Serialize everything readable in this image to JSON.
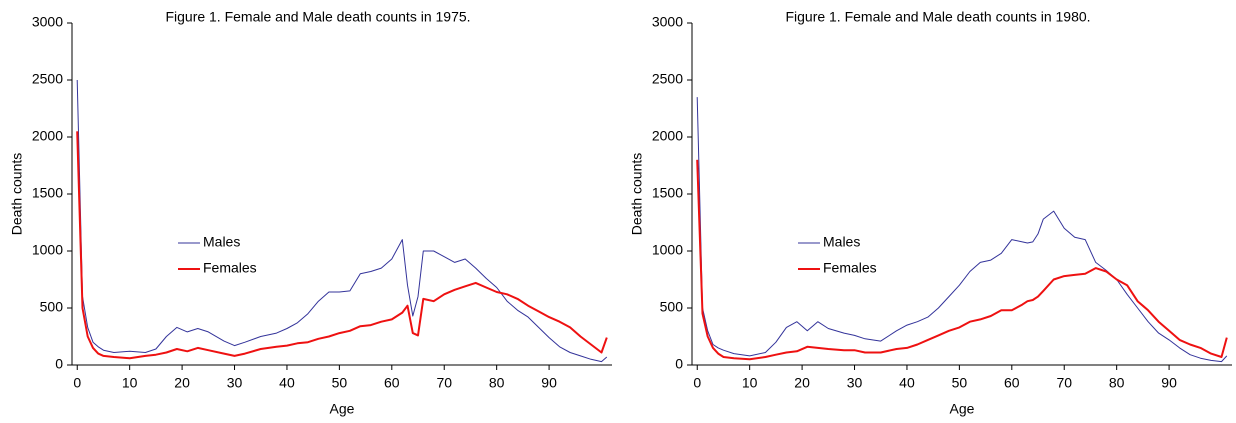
{
  "chart_data": [
    {
      "type": "line",
      "title": "Figure 1. Female and Male death counts in 1975.",
      "x_label": "Age",
      "y_label": "Death counts",
      "x": [
        0,
        1,
        2,
        3,
        4,
        5,
        7,
        10,
        13,
        15,
        17,
        19,
        21,
        23,
        25,
        28,
        30,
        32,
        35,
        38,
        40,
        42,
        44,
        46,
        48,
        50,
        52,
        54,
        56,
        58,
        60,
        62,
        63,
        64,
        65,
        66,
        68,
        70,
        72,
        74,
        76,
        78,
        80,
        82,
        84,
        86,
        88,
        90,
        92,
        94,
        96,
        98,
        100,
        101
      ],
      "series": [
        {
          "name": "Males",
          "color": "#33339a",
          "values": [
            2500,
            600,
            330,
            200,
            160,
            130,
            110,
            120,
            110,
            140,
            250,
            330,
            290,
            320,
            290,
            210,
            170,
            200,
            250,
            280,
            320,
            370,
            450,
            560,
            640,
            640,
            650,
            800,
            820,
            850,
            930,
            1100,
            700,
            430,
            600,
            1000,
            1000,
            950,
            900,
            930,
            850,
            760,
            680,
            560,
            480,
            420,
            330,
            240,
            160,
            110,
            80,
            50,
            30,
            70
          ]
        },
        {
          "name": "Females",
          "color": "#ee1111",
          "values": [
            2050,
            500,
            250,
            150,
            100,
            80,
            70,
            60,
            80,
            90,
            110,
            140,
            120,
            150,
            130,
            100,
            80,
            100,
            140,
            160,
            170,
            190,
            200,
            230,
            250,
            280,
            300,
            340,
            350,
            380,
            400,
            460,
            520,
            280,
            260,
            580,
            560,
            620,
            660,
            690,
            720,
            680,
            640,
            620,
            580,
            520,
            470,
            420,
            380,
            330,
            250,
            180,
            110,
            240
          ]
        }
      ],
      "xlim": [
        -1,
        102
      ],
      "ylim": [
        0,
        3000
      ],
      "xticks": [
        0,
        10,
        20,
        30,
        40,
        50,
        60,
        70,
        80,
        90
      ],
      "yticks": [
        0,
        500,
        1000,
        1500,
        2000,
        2500,
        3000
      ]
    },
    {
      "type": "line",
      "title": "Figure 1. Female and Male death counts in 1980.",
      "x_label": "Age",
      "y_label": "Death counts",
      "x": [
        0,
        1,
        2,
        3,
        4,
        5,
        7,
        10,
        13,
        15,
        17,
        19,
        21,
        23,
        25,
        28,
        30,
        32,
        35,
        38,
        40,
        42,
        44,
        46,
        48,
        50,
        52,
        54,
        56,
        58,
        60,
        62,
        63,
        64,
        65,
        66,
        68,
        70,
        72,
        74,
        76,
        78,
        80,
        82,
        84,
        86,
        88,
        90,
        92,
        94,
        96,
        98,
        100,
        101
      ],
      "series": [
        {
          "name": "Males",
          "color": "#33339a",
          "values": [
            2350,
            500,
            300,
            180,
            150,
            130,
            100,
            80,
            110,
            200,
            330,
            380,
            300,
            380,
            320,
            280,
            260,
            230,
            210,
            300,
            350,
            380,
            420,
            500,
            600,
            700,
            820,
            900,
            920,
            980,
            1100,
            1080,
            1070,
            1080,
            1150,
            1280,
            1350,
            1200,
            1120,
            1100,
            900,
            830,
            750,
            620,
            500,
            380,
            280,
            220,
            150,
            90,
            60,
            40,
            30,
            80
          ]
        },
        {
          "name": "Females",
          "color": "#ee1111",
          "values": [
            1800,
            450,
            250,
            150,
            100,
            70,
            60,
            50,
            70,
            90,
            110,
            120,
            160,
            150,
            140,
            130,
            130,
            110,
            110,
            140,
            150,
            180,
            220,
            260,
            300,
            330,
            380,
            400,
            430,
            480,
            480,
            530,
            560,
            570,
            600,
            650,
            750,
            780,
            790,
            800,
            850,
            820,
            750,
            700,
            560,
            480,
            380,
            300,
            220,
            180,
            150,
            100,
            70,
            240
          ]
        }
      ],
      "xlim": [
        -1,
        102
      ],
      "ylim": [
        0,
        3000
      ],
      "xticks": [
        0,
        10,
        20,
        30,
        40,
        50,
        60,
        70,
        80,
        90
      ],
      "yticks": [
        0,
        500,
        1000,
        1500,
        2000,
        2500,
        3000
      ]
    }
  ]
}
